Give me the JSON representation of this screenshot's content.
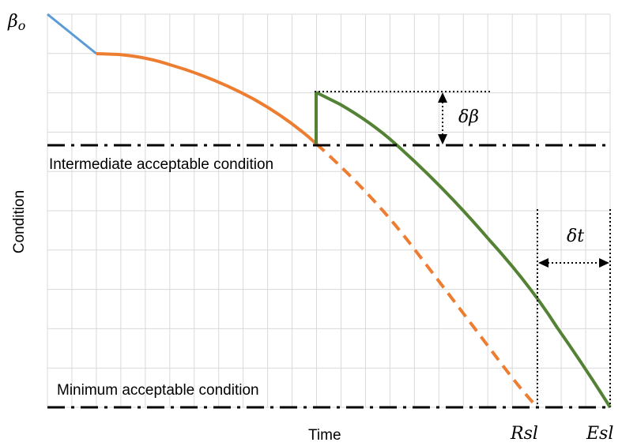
{
  "labels": {
    "y_axis": "Condition",
    "x_axis": "Time",
    "start": "βo",
    "intermediate": "Intermediate acceptable condition",
    "minimum": "Minimum acceptable condition",
    "delta_beta": "δβ",
    "delta_t": "δt",
    "rsl": "Rsl",
    "esl": "Esl"
  },
  "colors": {
    "initial": "#5b9bd5",
    "without_intervention": "#ed7d31",
    "with_intervention": "#548235",
    "grid": "#d9d9d9",
    "reference": "#000000"
  }
}
